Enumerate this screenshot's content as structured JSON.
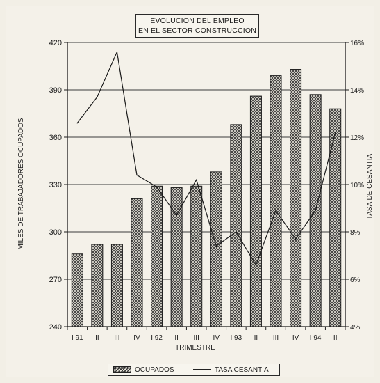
{
  "chart_data": {
    "type": "bar",
    "title_line1": "EVOLUCION DEL EMPLEO",
    "title_line2": "EN EL SECTOR CONSTRUCCION",
    "xlabel": "TRIMESTRE",
    "ylabel": "MILES DE TRABAJADORES OCUPADOS",
    "y2label": "TASA DE CESANTIA",
    "categories": [
      "I 91",
      "II",
      "III",
      "IV",
      "I 92",
      "II",
      "III",
      "IV",
      "I 93",
      "II",
      "III",
      "IV",
      "I 94",
      "II"
    ],
    "ylim": [
      240,
      420
    ],
    "yticks": [
      240,
      270,
      300,
      330,
      360,
      390,
      420
    ],
    "y2lim": [
      4,
      16
    ],
    "y2ticks": [
      4,
      6,
      8,
      10,
      12,
      14,
      16
    ],
    "y2tick_labels": [
      "4%",
      "6%",
      "8%",
      "10%",
      "12%",
      "14%",
      "16%"
    ],
    "grid": true,
    "legend_position": "bottom",
    "series": [
      {
        "name": "OCUPADOS",
        "type": "bar",
        "axis": "left",
        "values": [
          286,
          292,
          292,
          321,
          329,
          328,
          329,
          338,
          368,
          386,
          399,
          403,
          387,
          378
        ]
      },
      {
        "name": "TASA CESANTIA",
        "type": "line",
        "axis": "right",
        "values": [
          12.6,
          13.7,
          15.6,
          10.4,
          9.9,
          8.7,
          10.2,
          7.4,
          8.0,
          6.6,
          8.9,
          7.7,
          8.9,
          12.2
        ]
      }
    ]
  },
  "colors": {
    "background": "#f4f1e9",
    "ink": "#1c1c1c",
    "bar_fill": "#e9e6dc"
  }
}
